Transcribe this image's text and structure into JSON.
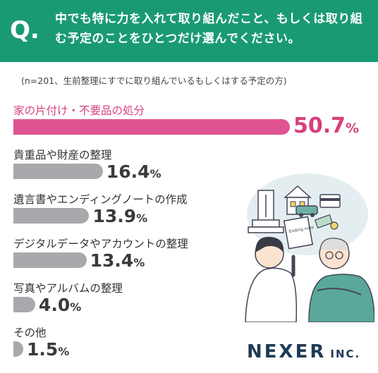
{
  "header": {
    "q_mark": "Q.",
    "question": "中でも特に力を入れて取り組んだこと、もしくは取り組む予定のことをひとつだけ選んでください。"
  },
  "note": "(n=201、生前整理にすでに取り組んでいるもしくはする予定の方)",
  "chart_data": {
    "type": "bar",
    "orientation": "horizontal",
    "categories": [
      "家の片付け・不要品の処分",
      "貴重品や財産の整理",
      "遺言書やエンディングノートの作成",
      "デジタルデータやアカウントの整理",
      "写真やアルバムの整理",
      "その他"
    ],
    "values": [
      50.7,
      16.4,
      13.9,
      13.4,
      4.0,
      1.5
    ],
    "value_labels": [
      "50.7",
      "16.4",
      "13.9",
      "13.4",
      "4.0",
      "1.5"
    ],
    "unit": "%",
    "highlight_index": 0,
    "colors": {
      "highlight": "#e05391",
      "default": "#a9a9ad",
      "highlight_text": "#d63f7c",
      "header": "#1a9a73"
    }
  },
  "illustration": {
    "notebook_text": "Ending note"
  },
  "brand": {
    "name": "NEXER",
    "suffix": "INC."
  }
}
